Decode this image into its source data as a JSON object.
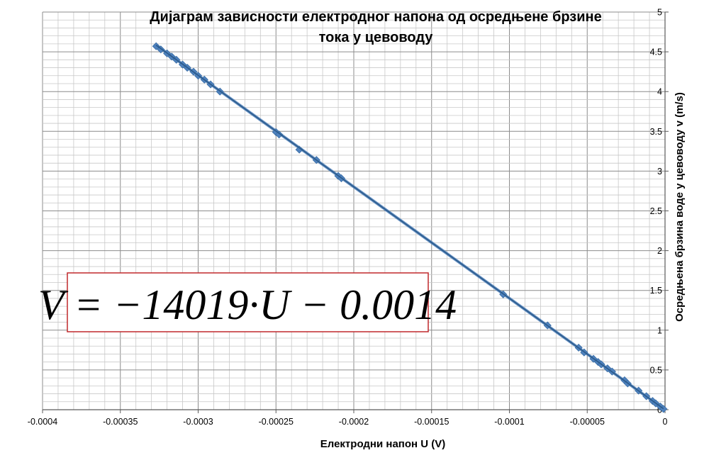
{
  "chart_data": {
    "type": "scatter",
    "title_lines": [
      "Дијаграм зависности електродног напона од осредњене брзине",
      "тока у цевоводу"
    ],
    "xlabel": "Електродни напон U (V)",
    "ylabel": "Осредњена брзина воде у цевоводу  v (m/s)",
    "xlim": [
      -0.0004,
      0
    ],
    "ylim": [
      0,
      5
    ],
    "x_ticks": [
      "-0.0004",
      "-0.00035",
      "-0.0003",
      "-0.00025",
      "-0.0002",
      "-0.00015",
      "-0.0001",
      "-0.00005",
      "0"
    ],
    "y_ticks": [
      "0",
      "0.5",
      "1",
      "1.5",
      "2",
      "2.5",
      "3",
      "3.5",
      "4",
      "4.5",
      "5"
    ],
    "grid": true,
    "legend": "none",
    "marker_color": "#4f81bd",
    "line_color": "#2a5a8a",
    "equation_box_color": "#c0282c",
    "annotation": "V = −14019·U − 0.0014",
    "trendline": {
      "slope": -14019,
      "intercept": -0.0014
    },
    "series": [
      {
        "x": [
          -0.000327,
          -0.000324,
          -0.00032,
          -0.000317,
          -0.000314,
          -0.00031,
          -0.000307,
          -0.000303,
          -0.0003,
          -0.000296,
          -0.000292,
          -0.000286,
          -0.00025,
          -0.000248,
          -0.000235,
          -0.000224,
          -0.00021,
          -0.000208,
          -0.000104,
          -7.55e-05,
          -5.55e-05,
          -5.2e-05,
          -4.6e-05,
          -4.3e-05,
          -4.1e-05,
          -3.7e-05,
          -3.4e-05,
          -2.6e-05,
          -2.4e-05,
          -1.7e-05,
          -1.2e-05,
          -8e-06,
          -6e-06,
          -3e-06,
          -1e-06
        ],
        "y": [
          4.57,
          4.53,
          4.48,
          4.44,
          4.4,
          4.34,
          4.3,
          4.25,
          4.2,
          4.15,
          4.09,
          4.0,
          3.49,
          3.46,
          3.27,
          3.14,
          2.94,
          2.91,
          1.45,
          1.06,
          0.78,
          0.72,
          0.64,
          0.6,
          0.57,
          0.52,
          0.48,
          0.37,
          0.33,
          0.24,
          0.17,
          0.11,
          0.08,
          0.04,
          0.01
        ]
      }
    ]
  }
}
